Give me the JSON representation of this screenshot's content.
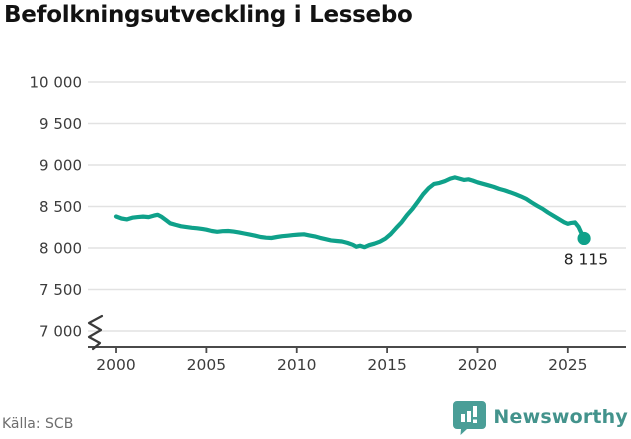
{
  "title": "Befolkningsutveckling i Lessebo",
  "source": {
    "label": "Källa: SCB"
  },
  "branding": {
    "wordmark": "Newsworthy",
    "icon": "newsworthy-bar-chart-pin-icon",
    "icon_color": "#4a9e97",
    "text_color": "#43938c"
  },
  "chart_data": {
    "type": "line",
    "title": "Befolkningsutveckling i Lessebo",
    "xlabel": "",
    "ylabel": "",
    "grid": "horizontal",
    "legend": "none",
    "xlim": [
      1998.56,
      2028.22
    ],
    "ylim": [
      7000,
      10000
    ],
    "y_axis_break_below_first_tick": true,
    "line_color": "#0fa18a",
    "axis_color": "#4a4a4a",
    "gridline_color": "#e2e2e2",
    "tick_label_color": "#3c3c3c",
    "x_ticks": [
      {
        "value": 2000,
        "label": "2000"
      },
      {
        "value": 2005,
        "label": "2005"
      },
      {
        "value": 2010,
        "label": "2010"
      },
      {
        "value": 2015,
        "label": "2015"
      },
      {
        "value": 2020,
        "label": "2020"
      },
      {
        "value": 2025,
        "label": "2025"
      }
    ],
    "y_ticks": [
      {
        "value": 7000,
        "label": "7 000"
      },
      {
        "value": 7500,
        "label": "7 500"
      },
      {
        "value": 8000,
        "label": "8 000"
      },
      {
        "value": 8500,
        "label": "8 500"
      },
      {
        "value": 9000,
        "label": "9 000"
      },
      {
        "value": 9500,
        "label": "9 500"
      },
      {
        "value": 10000,
        "label": "10 000"
      }
    ],
    "latest": {
      "x": 2025.9,
      "value": 8115,
      "label": "8 115"
    },
    "series": [
      {
        "name": "Befolkning",
        "points": [
          [
            2000.0,
            8380
          ],
          [
            2000.3,
            8355
          ],
          [
            2000.6,
            8345
          ],
          [
            2000.9,
            8365
          ],
          [
            2001.2,
            8372
          ],
          [
            2001.5,
            8378
          ],
          [
            2001.8,
            8372
          ],
          [
            2002.1,
            8390
          ],
          [
            2002.3,
            8400
          ],
          [
            2002.5,
            8378
          ],
          [
            2002.8,
            8330
          ],
          [
            2003.0,
            8298
          ],
          [
            2003.3,
            8278
          ],
          [
            2003.6,
            8262
          ],
          [
            2003.9,
            8252
          ],
          [
            2004.2,
            8243
          ],
          [
            2004.5,
            8237
          ],
          [
            2004.8,
            8228
          ],
          [
            2005.0,
            8220
          ],
          [
            2005.3,
            8205
          ],
          [
            2005.6,
            8195
          ],
          [
            2005.9,
            8202
          ],
          [
            2006.2,
            8205
          ],
          [
            2006.5,
            8198
          ],
          [
            2006.8,
            8188
          ],
          [
            2007.1,
            8175
          ],
          [
            2007.4,
            8162
          ],
          [
            2007.7,
            8148
          ],
          [
            2008.0,
            8132
          ],
          [
            2008.3,
            8124
          ],
          [
            2008.6,
            8120
          ],
          [
            2008.9,
            8132
          ],
          [
            2009.2,
            8142
          ],
          [
            2009.5,
            8148
          ],
          [
            2009.8,
            8155
          ],
          [
            2010.1,
            8162
          ],
          [
            2010.4,
            8165
          ],
          [
            2010.7,
            8152
          ],
          [
            2011.0,
            8140
          ],
          [
            2011.3,
            8122
          ],
          [
            2011.6,
            8106
          ],
          [
            2011.9,
            8092
          ],
          [
            2012.2,
            8084
          ],
          [
            2012.5,
            8078
          ],
          [
            2012.8,
            8062
          ],
          [
            2013.1,
            8038
          ],
          [
            2013.3,
            8014
          ],
          [
            2013.5,
            8028
          ],
          [
            2013.75,
            8010
          ],
          [
            2014.0,
            8034
          ],
          [
            2014.3,
            8052
          ],
          [
            2014.6,
            8076
          ],
          [
            2014.9,
            8112
          ],
          [
            2015.2,
            8168
          ],
          [
            2015.5,
            8240
          ],
          [
            2015.8,
            8310
          ],
          [
            2016.1,
            8396
          ],
          [
            2016.4,
            8470
          ],
          [
            2016.7,
            8558
          ],
          [
            2017.0,
            8648
          ],
          [
            2017.3,
            8722
          ],
          [
            2017.6,
            8772
          ],
          [
            2017.9,
            8784
          ],
          [
            2018.2,
            8806
          ],
          [
            2018.5,
            8836
          ],
          [
            2018.75,
            8850
          ],
          [
            2019.0,
            8836
          ],
          [
            2019.25,
            8820
          ],
          [
            2019.5,
            8828
          ],
          [
            2019.75,
            8812
          ],
          [
            2020.0,
            8792
          ],
          [
            2020.3,
            8774
          ],
          [
            2020.6,
            8756
          ],
          [
            2020.9,
            8736
          ],
          [
            2021.2,
            8712
          ],
          [
            2021.5,
            8694
          ],
          [
            2021.8,
            8672
          ],
          [
            2022.1,
            8648
          ],
          [
            2022.4,
            8622
          ],
          [
            2022.7,
            8592
          ],
          [
            2023.0,
            8548
          ],
          [
            2023.3,
            8508
          ],
          [
            2023.6,
            8472
          ],
          [
            2023.9,
            8428
          ],
          [
            2024.2,
            8388
          ],
          [
            2024.5,
            8348
          ],
          [
            2024.8,
            8310
          ],
          [
            2025.0,
            8292
          ],
          [
            2025.2,
            8302
          ],
          [
            2025.4,
            8308
          ],
          [
            2025.6,
            8252
          ],
          [
            2025.75,
            8180
          ],
          [
            2025.9,
            8115
          ]
        ]
      }
    ]
  }
}
